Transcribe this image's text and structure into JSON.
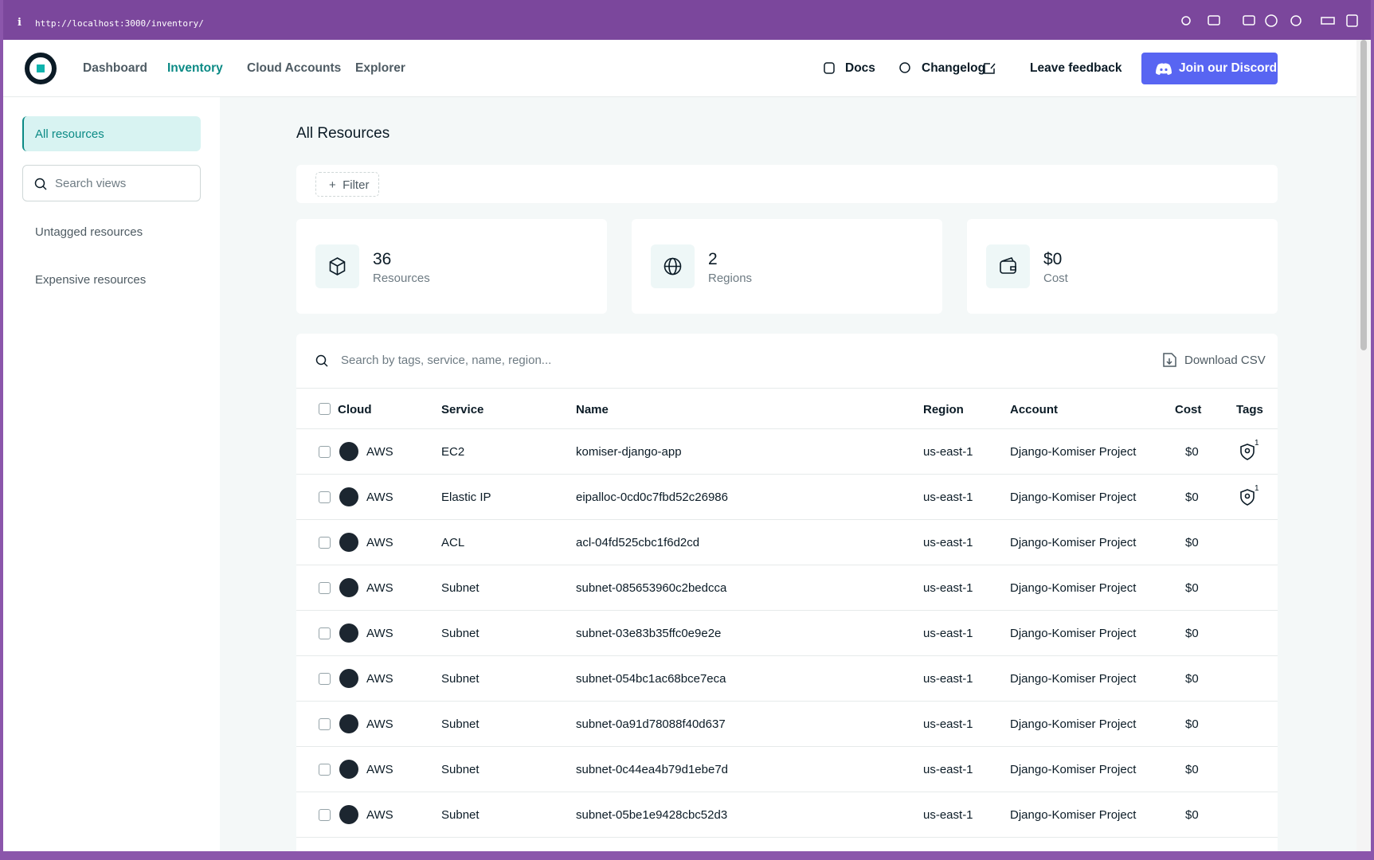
{
  "browser": {
    "url": "http://localhost:3000/inventory/"
  },
  "nav": {
    "items": [
      "Dashboard",
      "Inventory",
      "Cloud Accounts",
      "Explorer"
    ],
    "links": [
      "Docs",
      "Changelog",
      "Leave feedback"
    ],
    "cta": "Join our Discord"
  },
  "sidebar": {
    "active": "All resources",
    "search_placeholder": "Search views",
    "views": [
      "Untagged resources",
      "Expensive resources"
    ]
  },
  "main": {
    "title": "All Resources",
    "filter": "Filter",
    "stats": [
      {
        "value": "36",
        "label": "Resources"
      },
      {
        "value": "2",
        "label": "Regions"
      },
      {
        "value": "$0",
        "label": "Cost"
      }
    ]
  },
  "table": {
    "search_placeholder": "Search by tags, service, name, region...",
    "download": "Download CSV",
    "columns": [
      "Cloud",
      "Service",
      "Name",
      "Region",
      "Account",
      "Cost",
      "Tags"
    ],
    "rows": [
      {
        "cloud": "AWS",
        "service": "EC2",
        "name": "komiser-django-app",
        "region": "us-east-1",
        "account": "Django-Komiser Project",
        "cost": "$0",
        "tags": "1"
      },
      {
        "cloud": "AWS",
        "service": "Elastic IP",
        "name": "eipalloc-0cd0c7fbd52c26986",
        "region": "us-east-1",
        "account": "Django-Komiser Project",
        "cost": "$0",
        "tags": "1"
      },
      {
        "cloud": "AWS",
        "service": "ACL",
        "name": "acl-04fd525cbc1f6d2cd",
        "region": "us-east-1",
        "account": "Django-Komiser Project",
        "cost": "$0"
      },
      {
        "cloud": "AWS",
        "service": "Subnet",
        "name": "subnet-085653960c2bedcca",
        "region": "us-east-1",
        "account": "Django-Komiser Project",
        "cost": "$0"
      },
      {
        "cloud": "AWS",
        "service": "Subnet",
        "name": "subnet-03e83b35ffc0e9e2e",
        "region": "us-east-1",
        "account": "Django-Komiser Project",
        "cost": "$0"
      },
      {
        "cloud": "AWS",
        "service": "Subnet",
        "name": "subnet-054bc1ac68bce7eca",
        "region": "us-east-1",
        "account": "Django-Komiser Project",
        "cost": "$0"
      },
      {
        "cloud": "AWS",
        "service": "Subnet",
        "name": "subnet-0a91d78088f40d637",
        "region": "us-east-1",
        "account": "Django-Komiser Project",
        "cost": "$0"
      },
      {
        "cloud": "AWS",
        "service": "Subnet",
        "name": "subnet-0c44ea4b79d1ebe7d",
        "region": "us-east-1",
        "account": "Django-Komiser Project",
        "cost": "$0"
      },
      {
        "cloud": "AWS",
        "service": "Subnet",
        "name": "subnet-05be1e9428cbc52d3",
        "region": "us-east-1",
        "account": "Django-Komiser Project",
        "cost": "$0"
      }
    ]
  }
}
